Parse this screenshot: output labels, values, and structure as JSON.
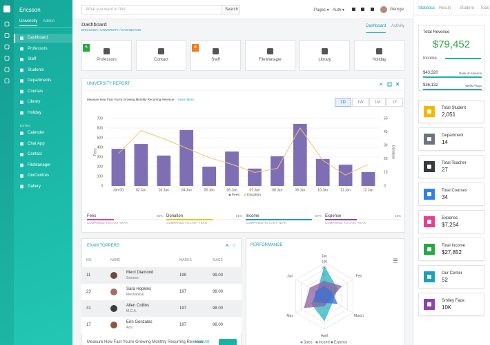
{
  "sidebar": {
    "brand": "Ericsson",
    "tabs": [
      "University",
      "Admin"
    ],
    "menu": [
      "Dashboard",
      "Professors",
      "Staff",
      "Students",
      "Departments",
      "Courses",
      "Library",
      "Holiday"
    ],
    "section": "EXTRA",
    "extra": [
      "Calender",
      "Chat App",
      "Contact",
      "FileManager",
      "OurCentres",
      "Gallery"
    ]
  },
  "header": {
    "search_placeholder": "What you want to find",
    "search_button": "Search",
    "menus": [
      "Pages ▾",
      "Auth ▾"
    ],
    "user": "George"
  },
  "page": {
    "title": "Dashboard",
    "breadcrumb": "ERICSSON / UNIVERSITY / DASHBOARD",
    "tabs": [
      "Dashboard",
      "Activity"
    ]
  },
  "tiles": [
    {
      "label": "Professors",
      "badge": "5"
    },
    {
      "label": "Contact"
    },
    {
      "label": "Staff",
      "badge": "8"
    },
    {
      "label": "FileManager"
    },
    {
      "label": "Library"
    },
    {
      "label": "Holiday"
    }
  ],
  "report": {
    "title": "UNIVERSITY REPORT",
    "ranges": [
      "1D",
      "1W",
      "1M",
      "1Y"
    ],
    "note": "Measure How Fast You're Growing Monthly Recurring Revenue.",
    "link": "Learn More",
    "stats": [
      {
        "name": "Fees",
        "value": "35%",
        "sub": "COMPARED TO LAST YEAR",
        "color": "#e83e8c"
      },
      {
        "name": "Donation",
        "value": "61%",
        "sub": "COMPARED TO LAST YEAR",
        "color": "#f5c400"
      },
      {
        "name": "Income",
        "value": "87%",
        "sub": "COMPARED TO LAST YEAR",
        "color": "#17a2b8"
      },
      {
        "name": "Expense",
        "value": "42%",
        "sub": "COMPARED TO LAST YEAR",
        "color": "#8e44ad"
      }
    ]
  },
  "toppers": {
    "title": "EXAM TOPPERS",
    "columns": [
      "NO.",
      "NAME",
      "MARKS",
      "%AGE"
    ],
    "rows": [
      {
        "no": "11",
        "name": "Merri Diamond",
        "dept": "Science",
        "marks": "199",
        "pct": "99.00"
      },
      {
        "no": "23",
        "name": "Sara Hopkins",
        "dept": "Mechanical",
        "marks": "197",
        "pct": "98.00"
      },
      {
        "no": "41",
        "name": "Allen Collins",
        "dept": "M.C.A.",
        "marks": "197",
        "pct": "98.00"
      },
      {
        "no": "17",
        "name": "Erin Gonzales",
        "dept": "Arts",
        "marks": "197",
        "pct": "98.00"
      }
    ],
    "footer": "Measure How Fast You're Growing Monthly Recurring Revenue.",
    "link": "View All"
  },
  "performance": {
    "title": "PERFORMANCE"
  },
  "right": {
    "tabs": [
      "Statistics",
      "Result",
      "Student",
      "Todo"
    ],
    "revenue": {
      "title": "Total Revenue",
      "amount": "$79,452",
      "label": "Income",
      "rows": [
        {
          "amount": "$43,320",
          "bank": "Bank of America"
        },
        {
          "amount": "$36,132",
          "bank": "Wells Fargo"
        }
      ]
    },
    "cards": [
      {
        "label": "Total Student",
        "value": "2,051",
        "color": "#f5b800"
      },
      {
        "label": "Department",
        "value": "14",
        "color": "#6c757d"
      },
      {
        "label": "Total Teacher",
        "value": "27",
        "color": "#343a40"
      },
      {
        "label": "Total Courses",
        "value": "34",
        "color": "#2f80ed"
      },
      {
        "label": "Expense",
        "value": "$7,254",
        "color": "#e83e8c"
      },
      {
        "label": "Total Income",
        "value": "$27,852",
        "color": "#28a745"
      },
      {
        "label": "Our Center",
        "value": "52",
        "color": "#17a2b8"
      },
      {
        "label": "Smiley Face",
        "value": "10K",
        "color": "#8e44ad"
      }
    ]
  },
  "chart_data": [
    {
      "type": "bar",
      "categories": [
        "Jan 00",
        "02 Jan",
        "03 Jan",
        "04 Jan",
        "05 Jan",
        "06 Jan",
        "07 Jan",
        "08 Jan",
        "09 Jan",
        "10 Jan",
        "11 Jan",
        "12 Jan"
      ],
      "series": [
        {
          "name": "Fees",
          "color": "#7e6fb5",
          "values": [
            385,
            435,
            315,
            580,
            200,
            357,
            180,
            307,
            643,
            280,
            220,
            143
          ]
        },
        {
          "name": "Donation",
          "color": "#f7c36a",
          "type": "line",
          "axis": "y2",
          "values": [
            24,
            41,
            35,
            28,
            21,
            16,
            10,
            13,
            43,
            19,
            8,
            16
          ]
        }
      ],
      "ylabel": "Fees",
      "y2label": "Donation",
      "ylim": [
        0,
        700
      ],
      "yticks": [
        0,
        100,
        200,
        300,
        400,
        500,
        600,
        700
      ],
      "y2lim": [
        0,
        50
      ],
      "y2ticks": [
        0,
        10,
        20,
        30,
        40,
        50
      ],
      "grid": true
    },
    {
      "type": "radar",
      "categories": [
        "Jan",
        "Feb",
        "March",
        "April",
        "May",
        "Jun"
      ],
      "rlim": [
        0,
        100
      ],
      "rticks": [
        20,
        40,
        60,
        80,
        100
      ],
      "series": [
        {
          "name": "Sales",
          "color": "#2bb3c0",
          "values": [
            90,
            45,
            30,
            75,
            45,
            25
          ]
        },
        {
          "name": "Income",
          "color": "#8e5ea2",
          "values": [
            45,
            60,
            20,
            30,
            70,
            50
          ]
        },
        {
          "name": "Expense",
          "color": "#3f6fd1",
          "values": [
            30,
            25,
            45,
            20,
            35,
            30
          ]
        }
      ]
    }
  ]
}
